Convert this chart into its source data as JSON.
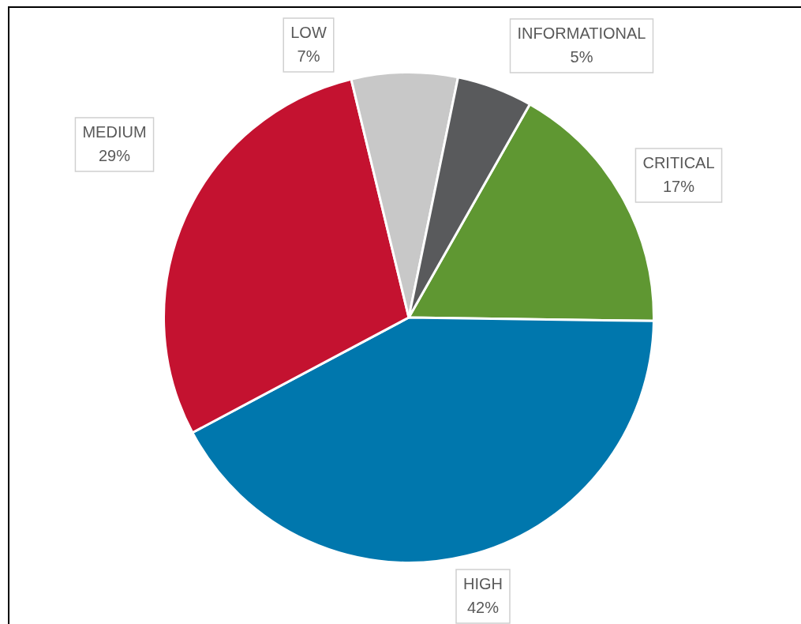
{
  "chart_data": {
    "type": "pie",
    "categories": [
      "CRITICAL",
      "HIGH",
      "MEDIUM",
      "LOW",
      "INFORMATIONAL"
    ],
    "values": [
      17,
      42,
      29,
      7,
      5
    ],
    "colors": [
      "#5f9732",
      "#0077ad",
      "#c41230",
      "#c8c8c8",
      "#595a5c"
    ],
    "value_labels": [
      "17%",
      "42%",
      "29%",
      "7%",
      "5%"
    ],
    "legend": false
  }
}
